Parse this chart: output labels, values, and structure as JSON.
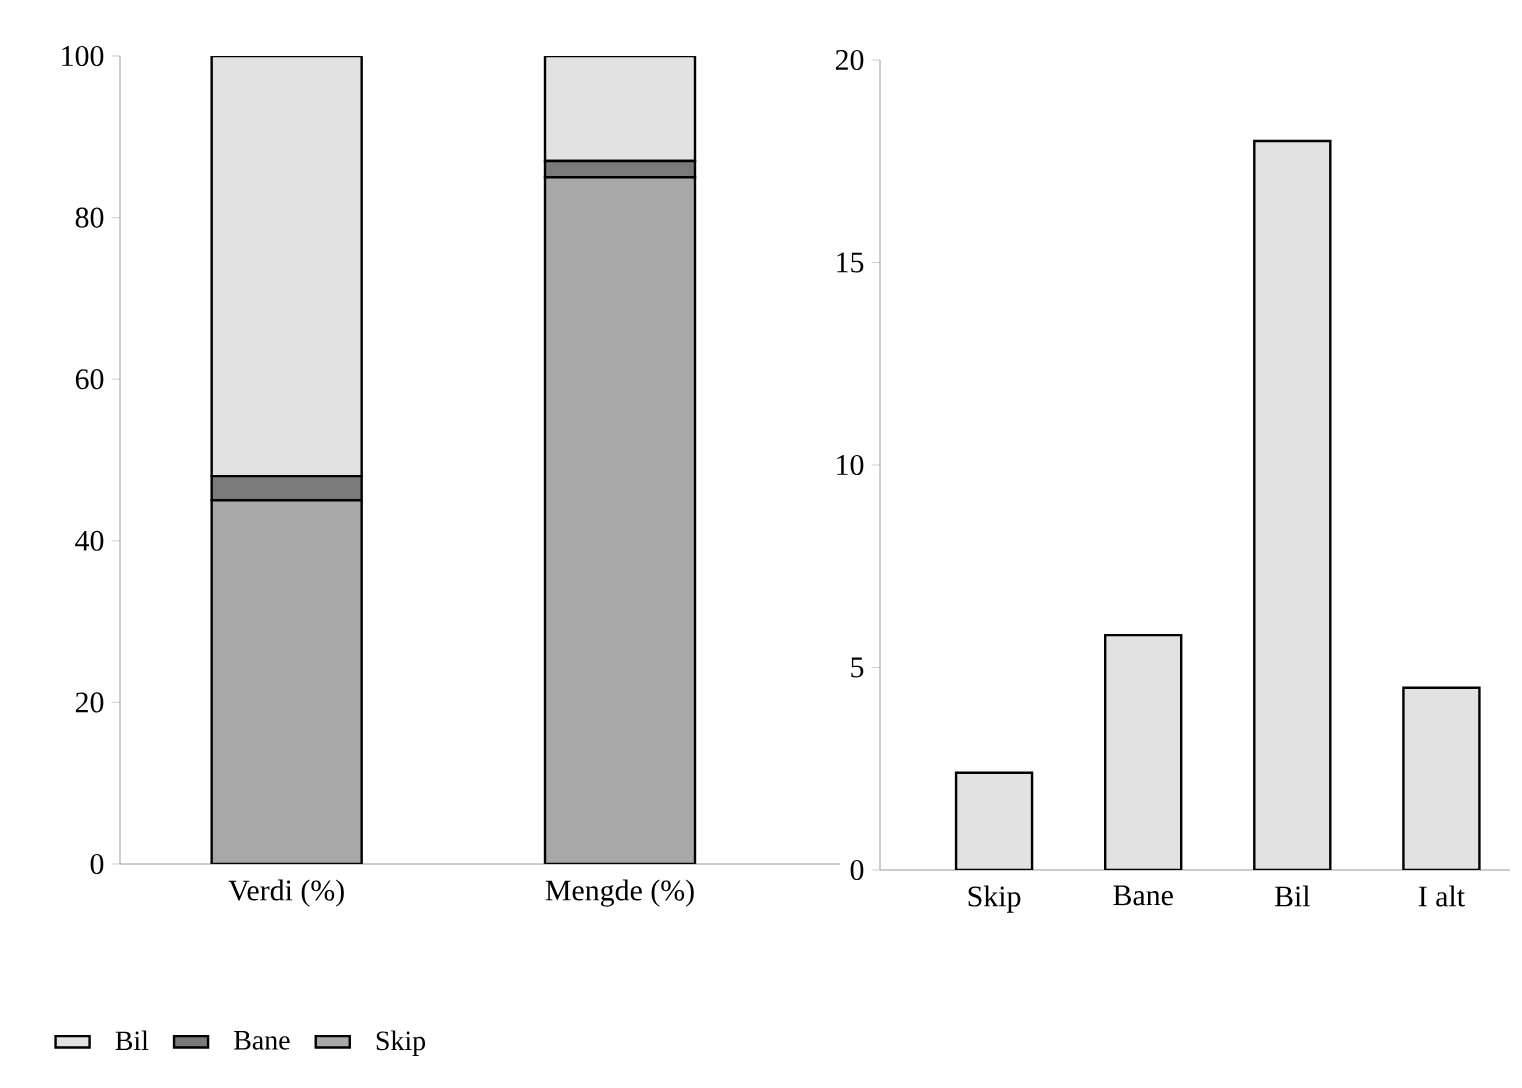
{
  "chart_data": [
    {
      "type": "bar",
      "stacked": true,
      "categories": [
        "Verdi (%)",
        "Mengde (%)"
      ],
      "ylim": [
        0,
        100
      ],
      "yticks": [
        0,
        20,
        40,
        60,
        80,
        100
      ],
      "legend": "bottom",
      "series": [
        {
          "name": "Skip",
          "color": "#a8a8a8",
          "values": [
            45,
            85
          ]
        },
        {
          "name": "Bane",
          "color": "#7a7a7a",
          "values": [
            3,
            2
          ]
        },
        {
          "name": "Bil",
          "color": "#e2e2e2",
          "values": [
            52,
            13
          ]
        }
      ]
    },
    {
      "type": "bar",
      "categories": [
        "Skip",
        "Bane",
        "Bil",
        "I alt"
      ],
      "ylim": [
        0,
        20
      ],
      "yticks": [
        0,
        5,
        10,
        15,
        20
      ],
      "color": "#e2e2e2",
      "values": [
        2.4,
        5.8,
        18.0,
        4.5
      ]
    }
  ]
}
